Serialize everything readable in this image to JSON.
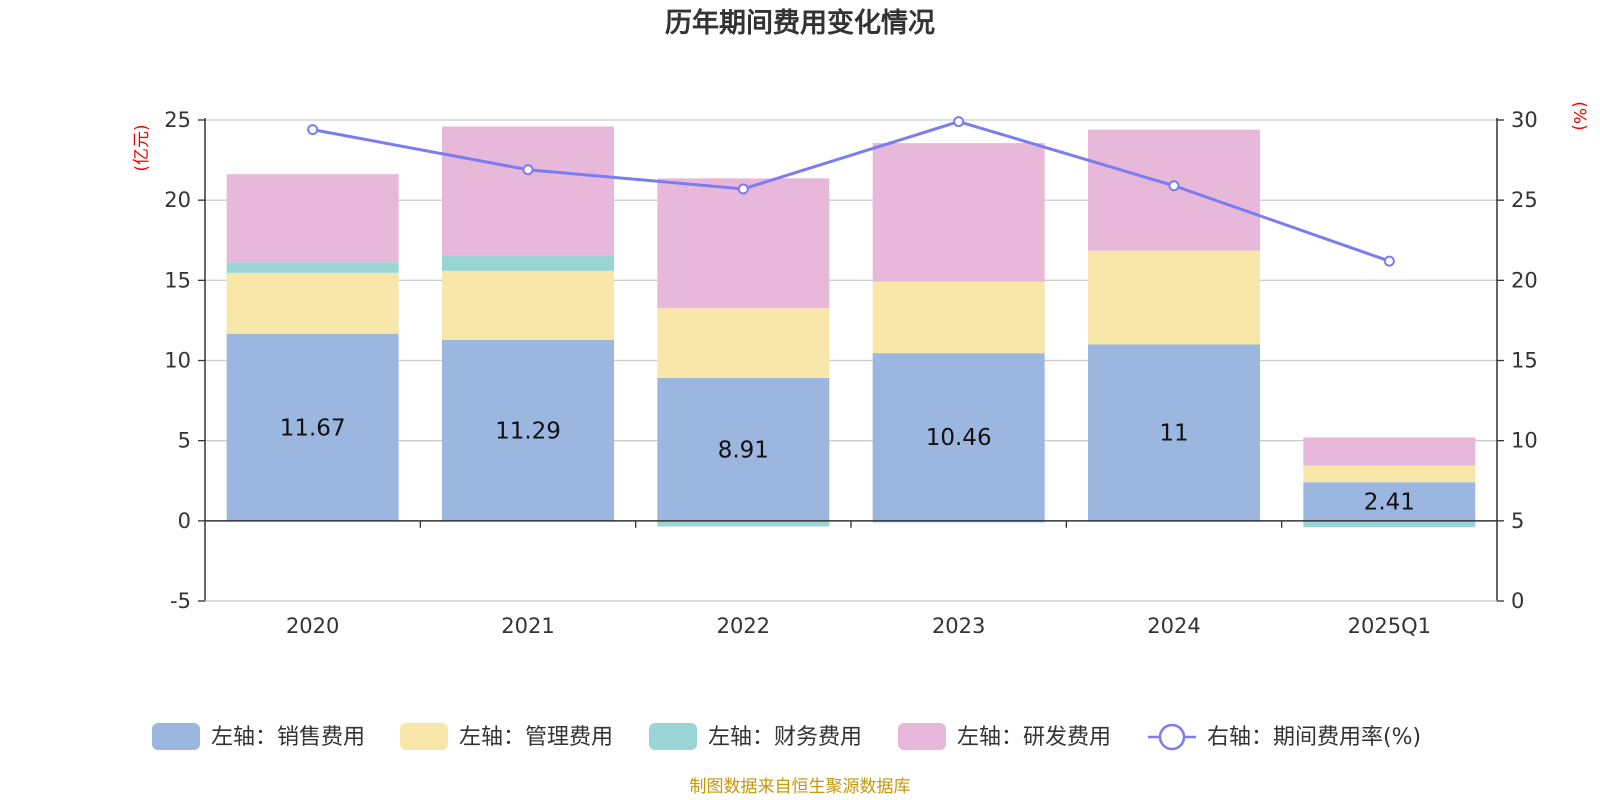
{
  "chart_data": {
    "type": "bar",
    "stacked": true,
    "title": "历年期间费用变化情况",
    "categories": [
      "2020",
      "2021",
      "2022",
      "2023",
      "2024",
      "2025Q1"
    ],
    "y_left": {
      "unit": "(亿元)",
      "ylim": [
        -5,
        25
      ],
      "ticks": [
        25,
        20,
        15,
        10,
        5,
        0,
        -5
      ]
    },
    "y_right": {
      "unit": "(%)",
      "ylim": [
        0,
        30
      ],
      "ticks": [
        30,
        25,
        20,
        15,
        10,
        5,
        0
      ]
    },
    "series": [
      {
        "name": "左轴：销售费用",
        "axis": "left",
        "kind": "bar",
        "color": "#9bb7e0",
        "values": [
          11.67,
          11.29,
          8.91,
          10.46,
          11.0,
          2.41
        ],
        "labels": [
          "11.67",
          "11.29",
          "8.91",
          "10.46",
          "11",
          "2.41"
        ]
      },
      {
        "name": "左轴：管理费用",
        "axis": "left",
        "kind": "bar",
        "color": "#f8e7a8",
        "values": [
          3.8,
          4.3,
          4.35,
          4.45,
          5.85,
          1.03
        ]
      },
      {
        "name": "左轴：财务费用",
        "axis": "left",
        "kind": "bar",
        "color": "#99d5d5",
        "values": [
          0.65,
          0.95,
          -0.35,
          -0.1,
          -0.05,
          -0.4
        ]
      },
      {
        "name": "左轴：研发费用",
        "axis": "left",
        "kind": "bar",
        "color": "#e8b8da",
        "values": [
          5.5,
          8.05,
          8.1,
          8.65,
          7.55,
          1.76
        ]
      },
      {
        "name": "右轴：期间费用率(%)",
        "axis": "right",
        "kind": "line",
        "color": "#7a7cf0",
        "values": [
          29.4,
          26.9,
          25.7,
          29.9,
          25.9,
          21.2
        ]
      }
    ],
    "legend_position": "bottom",
    "grid": true
  },
  "source": "制图数据来自恒生聚源数据库"
}
